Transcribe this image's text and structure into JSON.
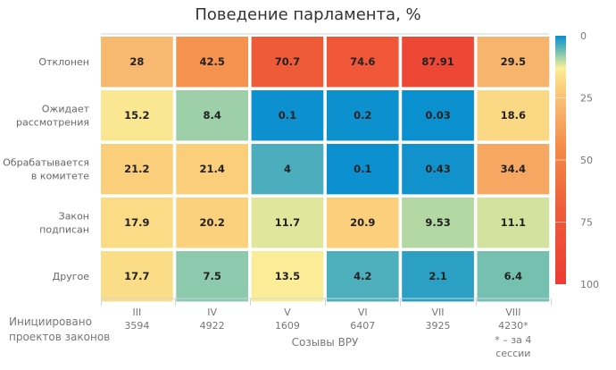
{
  "chart_data": {
    "type": "heatmap",
    "title": "Поведение парламента, %",
    "xlabel": "Созывы ВРУ",
    "x_side_label": [
      "Инициировано",
      "проектов законов"
    ],
    "columns": [
      {
        "name": "III",
        "initiated": "3594"
      },
      {
        "name": "IV",
        "initiated": "4922"
      },
      {
        "name": "V",
        "initiated": "1609"
      },
      {
        "name": "VI",
        "initiated": "6407"
      },
      {
        "name": "VII",
        "initiated": "3925"
      },
      {
        "name": "VIII",
        "initiated": "4230*",
        "note": [
          "* – за 4",
          "сессии"
        ]
      }
    ],
    "rows": [
      {
        "label": [
          "Отклонен"
        ],
        "values": [
          "28",
          "42.5",
          "70.7",
          "74.6",
          "87.91",
          "29.5"
        ]
      },
      {
        "label": [
          "Ожидает",
          "рассмотрения"
        ],
        "values": [
          "15.2",
          "8.4",
          "0.1",
          "0.2",
          "0.03",
          "18.6"
        ]
      },
      {
        "label": [
          "Обрабатывается",
          "в комитете"
        ],
        "values": [
          "21.2",
          "21.4",
          "4",
          "0.1",
          "0.43",
          "34.4"
        ]
      },
      {
        "label": [
          "Закон",
          "подписан"
        ],
        "values": [
          "17.9",
          "20.2",
          "11.7",
          "20.9",
          "9.53",
          "11.1"
        ]
      },
      {
        "label": [
          "Другое"
        ],
        "values": [
          "17.7",
          "7.5",
          "13.5",
          "4.2",
          "2.1",
          "6.4"
        ]
      }
    ],
    "colorbar": {
      "range": [
        0,
        100
      ],
      "ticks": [
        "0",
        "25",
        "50",
        "75",
        "100"
      ],
      "stops": [
        {
          "v": 0,
          "color": "#0a8fcf"
        },
        {
          "v": 5,
          "color": "#5bb5b8"
        },
        {
          "v": 10,
          "color": "#bcdca2"
        },
        {
          "v": 13,
          "color": "#fbef9a"
        },
        {
          "v": 20,
          "color": "#fbd27e"
        },
        {
          "v": 30,
          "color": "#f7b26c"
        },
        {
          "v": 45,
          "color": "#f38c48"
        },
        {
          "v": 70,
          "color": "#ef5c38"
        },
        {
          "v": 100,
          "color": "#ec3b35"
        }
      ]
    }
  }
}
